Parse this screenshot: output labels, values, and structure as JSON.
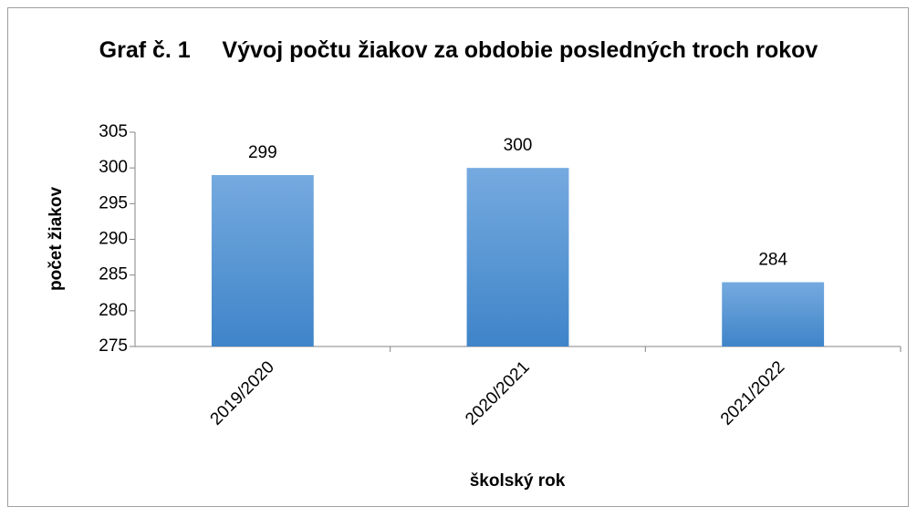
{
  "chart_data": {
    "type": "bar",
    "title": "Graf č. 1     Vývoj počtu žiakov za obdobie posledných troch rokov",
    "x_label": "školský rok",
    "y_label": "počet žiakov",
    "categories": [
      "2019/2020",
      "2020/2021",
      "2021/2022"
    ],
    "values": [
      299,
      300,
      284
    ],
    "color": "#4a8fd6",
    "ylim": [
      275,
      305
    ],
    "yticks": [
      275,
      280,
      285,
      290,
      295,
      300,
      305
    ],
    "grid": false
  }
}
